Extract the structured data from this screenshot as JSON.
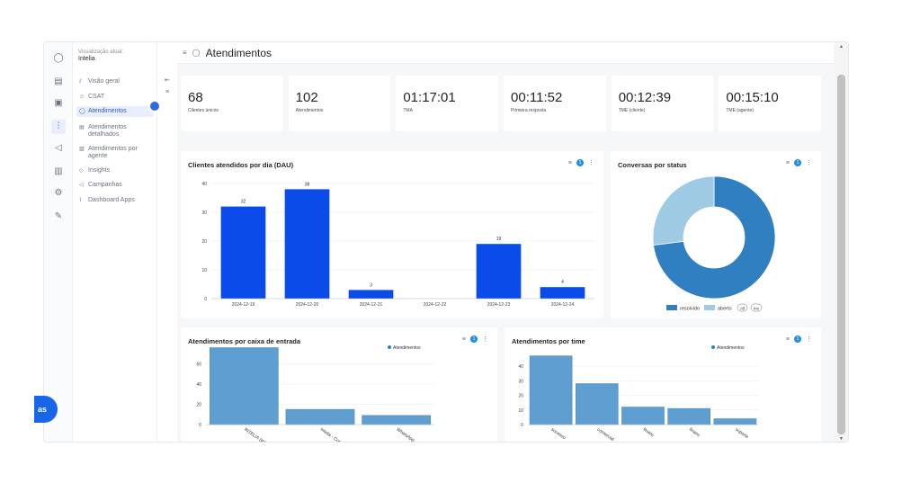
{
  "left_bubble": {
    "text": "as"
  },
  "rail": {
    "icons": [
      "chat-icon",
      "inbox-icon",
      "contacts-icon",
      "reports-icon",
      "campaign-icon",
      "library-icon",
      "settings-icon",
      "edit-icon"
    ]
  },
  "sidebar": {
    "view_label": "Visualização atual:",
    "view_value": "Intelia",
    "items": [
      {
        "label": "Visão geral",
        "icon": "chart-icon"
      },
      {
        "label": "CSAT",
        "icon": "smile-icon"
      },
      {
        "label": "Atendimentos",
        "icon": "chat-icon"
      },
      {
        "label": "Atendimentos detalhados",
        "icon": "list-icon"
      },
      {
        "label": "Atendimentos por agente",
        "icon": "user-icon"
      },
      {
        "label": "Insights",
        "icon": "bulb-icon"
      },
      {
        "label": "Campanhas",
        "icon": "megaphone-icon"
      },
      {
        "label": "Dashboard Apps",
        "icon": "link-icon"
      }
    ]
  },
  "page": {
    "title": "Atendimentos"
  },
  "kpis": [
    {
      "value": "68",
      "label": "Clientes únicos"
    },
    {
      "value": "102",
      "label": "Atendimentos"
    },
    {
      "value": "01:17:01",
      "label": "TMA"
    },
    {
      "value": "00:11:52",
      "label": "Primeira resposta"
    },
    {
      "value": "00:12:39",
      "label": "TME (cliente)"
    },
    {
      "value": "00:15:10",
      "label": "TME (agente)"
    }
  ],
  "cards": {
    "dau": {
      "title": "Clientes atendidos por dia (DAU)",
      "badge": "1"
    },
    "status": {
      "title": "Conversas por status",
      "badge": "1"
    },
    "inbox": {
      "title": "Atendimentos por caixa de entrada",
      "badge": "1"
    },
    "team": {
      "title": "Atendimentos por time",
      "badge": "1"
    }
  },
  "colors": {
    "bar_blue": "#0a4bea",
    "steel_blue": "#5f9ed1",
    "donut_dark": "#2f7fc1",
    "donut_light": "#9ecae4"
  },
  "chart_data": [
    {
      "type": "bar",
      "title": "Clientes atendidos por dia (DAU)",
      "categories": [
        "2024-12-19",
        "2024-12-20",
        "2024-12-21",
        "2024-12-22",
        "2024-12-23",
        "2024-12-24"
      ],
      "values": [
        32,
        38,
        3,
        0,
        19,
        4
      ],
      "data_labels": [
        "32",
        "38",
        "3",
        "",
        "19",
        "4"
      ],
      "ylim": [
        0,
        40
      ],
      "yticks": [
        "0",
        "10",
        "20",
        "30",
        "40"
      ]
    },
    {
      "type": "pie",
      "title": "Conversas por status",
      "categories": [
        "resolvido",
        "aberto"
      ],
      "values": [
        73,
        27
      ],
      "legend": {
        "items": [
          "resolvido",
          "aberto"
        ],
        "extra": [
          "All",
          "Inv"
        ],
        "placement": "bottom"
      }
    },
    {
      "type": "bar",
      "title": "Atendimentos por caixa de entrada",
      "categories": [
        "INTELIA (WE",
        "Intelia - Con",
        "WhatsApp - I"
      ],
      "values": [
        76,
        15,
        9
      ],
      "series": [
        {
          "name": "Atendimentos",
          "values": [
            76,
            15,
            9
          ]
        }
      ],
      "ylim": [
        0,
        80
      ],
      "yticks": [
        "0",
        "20",
        "40",
        "60"
      ]
    },
    {
      "type": "bar",
      "title": "Atendimentos por time",
      "categories": [
        "sucesso",
        "comercial",
        "financ",
        "financ",
        "suporte"
      ],
      "values": [
        47,
        28,
        12,
        11,
        4
      ],
      "series": [
        {
          "name": "Atendimentos",
          "values": [
            47,
            28,
            12,
            11,
            4
          ]
        }
      ],
      "ylim": [
        0,
        48
      ],
      "yticks": [
        "0",
        "10",
        "20",
        "30",
        "40"
      ]
    }
  ]
}
